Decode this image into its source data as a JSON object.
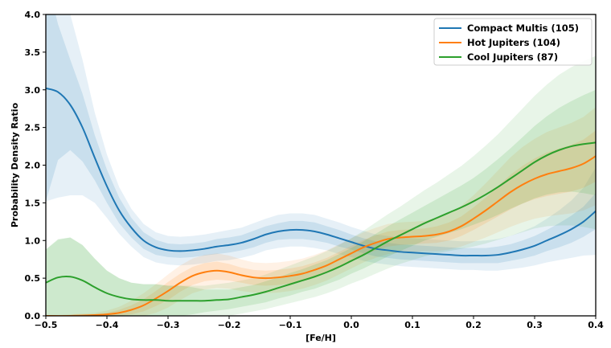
{
  "chart_data": {
    "type": "line",
    "xlabel": "[Fe/H]",
    "ylabel": "Probability Density Ratio",
    "xlim": [
      -0.5,
      0.4
    ],
    "ylim": [
      0,
      4.0
    ],
    "xticks": [
      "-0.5",
      "-0.4",
      "-0.3",
      "-0.2",
      "-0.1",
      "0.0",
      "0.1",
      "0.2",
      "0.3",
      "0.4"
    ],
    "yticks": [
      "0.0",
      "0.5",
      "1.0",
      "1.5",
      "2.0",
      "2.5",
      "3.0",
      "3.5",
      "4.0"
    ],
    "grid": false,
    "legend_position": "top-right",
    "series": [
      {
        "name": "Compact Multis (105)",
        "color": "#1f77b4",
        "x": [
          -0.5,
          -0.48,
          -0.46,
          -0.44,
          -0.42,
          -0.4,
          -0.38,
          -0.36,
          -0.34,
          -0.32,
          -0.3,
          -0.28,
          -0.26,
          -0.24,
          -0.22,
          -0.2,
          -0.18,
          -0.16,
          -0.14,
          -0.12,
          -0.1,
          -0.08,
          -0.06,
          -0.04,
          -0.02,
          0.0,
          0.02,
          0.04,
          0.06,
          0.08,
          0.1,
          0.12,
          0.14,
          0.16,
          0.18,
          0.2,
          0.22,
          0.24,
          0.26,
          0.28,
          0.3,
          0.32,
          0.34,
          0.36,
          0.38,
          0.4
        ],
        "y": [
          3.02,
          2.97,
          2.8,
          2.5,
          2.1,
          1.72,
          1.4,
          1.17,
          1.0,
          0.91,
          0.87,
          0.86,
          0.87,
          0.89,
          0.92,
          0.94,
          0.97,
          1.02,
          1.08,
          1.12,
          1.14,
          1.14,
          1.12,
          1.08,
          1.03,
          0.98,
          0.93,
          0.89,
          0.87,
          0.85,
          0.84,
          0.83,
          0.82,
          0.81,
          0.8,
          0.8,
          0.8,
          0.81,
          0.84,
          0.88,
          0.93,
          1.0,
          1.07,
          1.15,
          1.25,
          1.39
        ],
        "band_inner": [
          1.5,
          0.9,
          0.6,
          0.45,
          0.3,
          0.22,
          0.17,
          0.13,
          0.11,
          0.1,
          0.09,
          0.09,
          0.09,
          0.09,
          0.1,
          0.1,
          0.1,
          0.11,
          0.11,
          0.11,
          0.12,
          0.12,
          0.12,
          0.11,
          0.11,
          0.1,
          0.1,
          0.1,
          0.1,
          0.1,
          0.1,
          0.1,
          0.1,
          0.1,
          0.1,
          0.1,
          0.1,
          0.11,
          0.11,
          0.12,
          0.13,
          0.14,
          0.16,
          0.18,
          0.2,
          0.24
        ],
        "band_outer": [
          1.5,
          1.4,
          1.2,
          0.9,
          0.6,
          0.42,
          0.31,
          0.25,
          0.22,
          0.2,
          0.19,
          0.19,
          0.19,
          0.19,
          0.19,
          0.2,
          0.2,
          0.21,
          0.21,
          0.22,
          0.22,
          0.22,
          0.22,
          0.21,
          0.21,
          0.2,
          0.2,
          0.19,
          0.19,
          0.19,
          0.19,
          0.19,
          0.19,
          0.19,
          0.19,
          0.19,
          0.2,
          0.21,
          0.22,
          0.24,
          0.26,
          0.29,
          0.33,
          0.38,
          0.45,
          0.58
        ]
      },
      {
        "name": "Hot Jupiters (104)",
        "color": "#ff7f0e",
        "x": [
          -0.5,
          -0.46,
          -0.42,
          -0.4,
          -0.38,
          -0.36,
          -0.34,
          -0.32,
          -0.3,
          -0.28,
          -0.26,
          -0.24,
          -0.22,
          -0.2,
          -0.18,
          -0.16,
          -0.14,
          -0.12,
          -0.1,
          -0.08,
          -0.06,
          -0.04,
          -0.02,
          0.0,
          0.02,
          0.04,
          0.06,
          0.08,
          0.1,
          0.12,
          0.14,
          0.16,
          0.18,
          0.2,
          0.22,
          0.24,
          0.26,
          0.28,
          0.3,
          0.32,
          0.34,
          0.36,
          0.38,
          0.4
        ],
        "y": [
          0.0,
          0.0,
          0.01,
          0.02,
          0.04,
          0.08,
          0.14,
          0.23,
          0.33,
          0.44,
          0.53,
          0.58,
          0.6,
          0.58,
          0.54,
          0.51,
          0.5,
          0.51,
          0.53,
          0.56,
          0.61,
          0.67,
          0.75,
          0.83,
          0.91,
          0.97,
          1.02,
          1.04,
          1.05,
          1.06,
          1.08,
          1.12,
          1.19,
          1.29,
          1.4,
          1.52,
          1.64,
          1.74,
          1.82,
          1.88,
          1.92,
          1.96,
          2.02,
          2.12
        ],
        "band_inner": [
          0.0,
          0.0,
          0.01,
          0.02,
          0.04,
          0.06,
          0.08,
          0.1,
          0.12,
          0.12,
          0.12,
          0.12,
          0.12,
          0.11,
          0.1,
          0.1,
          0.1,
          0.1,
          0.1,
          0.1,
          0.1,
          0.1,
          0.1,
          0.1,
          0.1,
          0.1,
          0.1,
          0.1,
          0.1,
          0.1,
          0.11,
          0.12,
          0.13,
          0.15,
          0.17,
          0.2,
          0.23,
          0.25,
          0.27,
          0.29,
          0.3,
          0.31,
          0.32,
          0.34
        ],
        "band_outer": [
          0.0,
          0.02,
          0.03,
          0.05,
          0.08,
          0.12,
          0.16,
          0.19,
          0.22,
          0.23,
          0.23,
          0.23,
          0.23,
          0.22,
          0.21,
          0.2,
          0.2,
          0.2,
          0.2,
          0.2,
          0.2,
          0.2,
          0.2,
          0.2,
          0.2,
          0.2,
          0.2,
          0.2,
          0.2,
          0.2,
          0.22,
          0.24,
          0.27,
          0.31,
          0.36,
          0.41,
          0.46,
          0.5,
          0.53,
          0.56,
          0.58,
          0.6,
          0.62,
          0.65
        ]
      },
      {
        "name": "Cool Jupiters (87)",
        "color": "#2ca02c",
        "x": [
          -0.5,
          -0.48,
          -0.46,
          -0.44,
          -0.42,
          -0.4,
          -0.38,
          -0.36,
          -0.34,
          -0.32,
          -0.3,
          -0.28,
          -0.26,
          -0.24,
          -0.22,
          -0.2,
          -0.18,
          -0.16,
          -0.14,
          -0.12,
          -0.1,
          -0.08,
          -0.06,
          -0.04,
          -0.02,
          0.0,
          0.02,
          0.04,
          0.06,
          0.08,
          0.1,
          0.12,
          0.14,
          0.16,
          0.18,
          0.2,
          0.22,
          0.24,
          0.26,
          0.28,
          0.3,
          0.32,
          0.34,
          0.36,
          0.38,
          0.4
        ],
        "y": [
          0.44,
          0.51,
          0.52,
          0.47,
          0.38,
          0.3,
          0.25,
          0.22,
          0.21,
          0.21,
          0.2,
          0.2,
          0.2,
          0.2,
          0.21,
          0.22,
          0.25,
          0.28,
          0.32,
          0.37,
          0.42,
          0.47,
          0.52,
          0.58,
          0.65,
          0.73,
          0.81,
          0.9,
          0.99,
          1.07,
          1.15,
          1.23,
          1.3,
          1.37,
          1.44,
          1.52,
          1.61,
          1.71,
          1.82,
          1.93,
          2.04,
          2.13,
          2.2,
          2.25,
          2.28,
          2.3
        ],
        "band_inner": [
          0.44,
          0.5,
          0.52,
          0.47,
          0.38,
          0.3,
          0.25,
          0.22,
          0.21,
          0.21,
          0.2,
          0.2,
          0.18,
          0.15,
          0.14,
          0.13,
          0.13,
          0.13,
          0.14,
          0.14,
          0.15,
          0.15,
          0.16,
          0.16,
          0.17,
          0.17,
          0.18,
          0.19,
          0.2,
          0.21,
          0.22,
          0.23,
          0.25,
          0.27,
          0.29,
          0.31,
          0.34,
          0.37,
          0.4,
          0.44,
          0.48,
          0.52,
          0.56,
          0.6,
          0.65,
          0.7
        ],
        "band_outer": [
          0.44,
          0.51,
          0.52,
          0.47,
          0.38,
          0.3,
          0.25,
          0.22,
          0.21,
          0.21,
          0.2,
          0.2,
          0.2,
          0.2,
          0.21,
          0.22,
          0.22,
          0.22,
          0.23,
          0.24,
          0.25,
          0.26,
          0.27,
          0.28,
          0.29,
          0.3,
          0.32,
          0.34,
          0.36,
          0.38,
          0.41,
          0.44,
          0.47,
          0.51,
          0.55,
          0.6,
          0.65,
          0.7,
          0.76,
          0.82,
          0.88,
          0.94,
          1.0,
          1.05,
          1.1,
          1.15
        ]
      }
    ]
  }
}
